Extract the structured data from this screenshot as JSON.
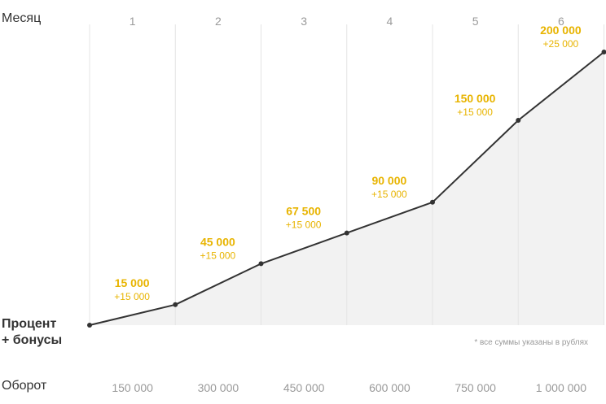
{
  "labels": {
    "month": "Месяц",
    "percent_line1": "Процент",
    "percent_line2": "+ бонусы",
    "turnover": "Оборот",
    "footnote": "* все суммы указаны в рублях"
  },
  "colors": {
    "line": "#333333",
    "area": "#f2f2f2",
    "accent": "#e8b400",
    "grid": "#e4e4e4",
    "muted": "#9a9a9a"
  },
  "chart_data": {
    "type": "area",
    "months": [
      "1",
      "2",
      "3",
      "4",
      "5",
      "6"
    ],
    "turnover": [
      "150 000",
      "300 000",
      "450 000",
      "600 000",
      "750 000",
      "1 000 000"
    ],
    "x": [
      0,
      1,
      2,
      3,
      4,
      5,
      6
    ],
    "values": [
      0,
      15000,
      45000,
      67500,
      90000,
      150000,
      200000
    ],
    "value_labels": [
      "",
      "15 000",
      "45 000",
      "67 500",
      "90 000",
      "150 000",
      "200 000"
    ],
    "increments": [
      "",
      "+15 000",
      "+15 000",
      "+15 000",
      "+15 000",
      "+15 000",
      "+25 000"
    ],
    "ylim": [
      0,
      200000
    ],
    "grid": true
  }
}
